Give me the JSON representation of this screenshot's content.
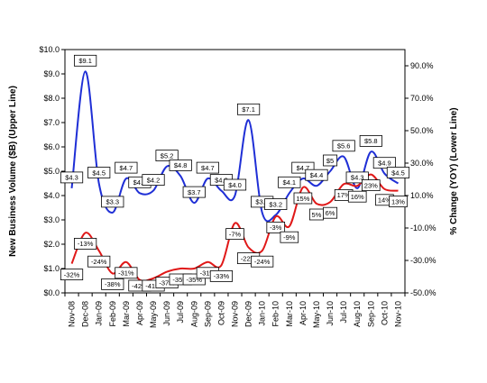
{
  "chart_data": {
    "type": "line",
    "categories": [
      "Nov-08",
      "Dec-08",
      "Jan-09",
      "Feb-09",
      "Mar-09",
      "Apr-09",
      "May-09",
      "Jun-09",
      "Jul-09",
      "Aug-09",
      "Sep-09",
      "Oct-09",
      "Nov-09",
      "Dec-09",
      "Jan-10",
      "Feb-10",
      "Mar-10",
      "Apr-10",
      "May-10",
      "Jun-10",
      "Jul-10",
      "Aug-10",
      "Sep-10",
      "Oct-10",
      "Nov-10"
    ],
    "left_axis": {
      "label": "New Business Volume ($B) (Upper Line)",
      "min": 0,
      "max": 10,
      "step": 1,
      "ticks": [
        "$0.0",
        "$1.0",
        "$2.0",
        "$3.0",
        "$4.0",
        "$5.0",
        "$6.0",
        "$7.0",
        "$8.0",
        "$9.0",
        "$10.0"
      ]
    },
    "right_axis": {
      "label": "% Change (YOY) (Lower Line)",
      "min": -50,
      "max": 100,
      "step": 20,
      "ticks": [
        "-50.0%",
        "-30.0%",
        "-10.0%",
        "10.0%",
        "30.0%",
        "50.0%",
        "70.0%",
        "90.0%"
      ]
    },
    "series": [
      {
        "color": "#1f2fd6",
        "axis": "left",
        "values": [
          4.3,
          9.1,
          4.5,
          3.3,
          4.7,
          4.1,
          4.2,
          5.2,
          4.8,
          3.7,
          4.7,
          4.2,
          4.0,
          7.1,
          3.3,
          3.2,
          4.1,
          4.7,
          4.4,
          5.0,
          5.6,
          4.3,
          5.8,
          4.9,
          4.5
        ],
        "labels": [
          "$4.3",
          "$9.1",
          "$4.5",
          "$3.3",
          "$4.7",
          "$4.1",
          "$4.2",
          "$5.2",
          "$4.8",
          "$3.7",
          "$4.7",
          "$4.2",
          "$4.0",
          "$7.1",
          "$3.3",
          "$3.2",
          "$4.1",
          "$4.7",
          "$4.4",
          "$5",
          "$5.6",
          "$4.3",
          "$5.8",
          "$4.9",
          "$4.5"
        ]
      },
      {
        "color": "#e01818",
        "axis": "right",
        "values": [
          -32,
          -13,
          -24,
          -38,
          -31,
          -42,
          -41,
          -37,
          -35,
          -35,
          -31,
          -33,
          -7,
          -22,
          -24,
          -3,
          -9,
          15,
          5,
          6,
          17,
          16,
          23,
          14,
          13
        ],
        "labels": [
          "-32%",
          "-13%",
          "-24%",
          "-38%",
          "-31%",
          "-42%",
          "-41%",
          "-37%",
          "-35%",
          "-35%",
          "-31%",
          "-33%",
          "-7%",
          "-22%",
          "-24%",
          "-3%",
          "-9%",
          "15%",
          "5%",
          "6%",
          "17%",
          "16%",
          "23%",
          "14%",
          "13%"
        ]
      }
    ],
    "grid": false,
    "legend": "none"
  }
}
